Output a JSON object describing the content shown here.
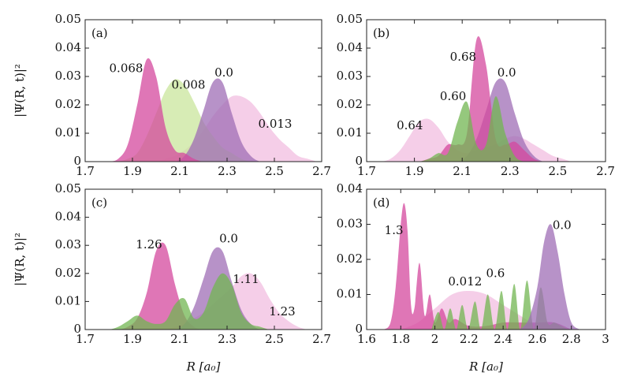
{
  "chart_data": [
    {
      "type": "area",
      "panel_label": "(a)",
      "ylabel": "|Ψ(R, t)|²",
      "xlim": [
        1.7,
        2.7
      ],
      "ylim": [
        0,
        0.05
      ],
      "xticks": [
        1.7,
        1.9,
        2.1,
        2.3,
        2.5,
        2.7
      ],
      "yticks": [
        0,
        0.01,
        0.02,
        0.03,
        0.04,
        0.05
      ],
      "x": [
        1.72,
        1.76,
        1.8,
        1.84,
        1.88,
        1.92,
        1.96,
        2,
        2.04,
        2.08,
        2.12,
        2.16,
        2.2,
        2.24,
        2.28,
        2.32,
        2.36,
        2.4,
        2.44,
        2.48,
        2.52,
        2.56,
        2.6,
        2.64,
        2.68
      ],
      "series": [
        {
          "name": "0.013",
          "color": "#f2bde0",
          "values": [
            0,
            0,
            0,
            0,
            0,
            0,
            0,
            0,
            0.001,
            0.002,
            0.004,
            0.007,
            0.011,
            0.016,
            0.02,
            0.023,
            0.023,
            0.021,
            0.017,
            0.012,
            0.008,
            0.005,
            0.002,
            0.001,
            0
          ]
        },
        {
          "name": "0.008",
          "color": "#c9e69c",
          "values": [
            0,
            0,
            0,
            0,
            0.001,
            0.003,
            0.009,
            0.017,
            0.025,
            0.029,
            0.027,
            0.021,
            0.014,
            0.009,
            0.005,
            0.003,
            0.001,
            0,
            0,
            0,
            0,
            0,
            0,
            0,
            0
          ]
        },
        {
          "name": "0.0",
          "color": "#9f6db5",
          "values": [
            0,
            0,
            0,
            0,
            0,
            0,
            0,
            0,
            0,
            0,
            0.002,
            0.008,
            0.018,
            0.028,
            0.028,
            0.017,
            0.007,
            0.002,
            0,
            0,
            0,
            0,
            0,
            0,
            0
          ]
        },
        {
          "name": "0.068",
          "color": "#d4489e",
          "values": [
            0,
            0,
            0,
            0.001,
            0.006,
            0.02,
            0.036,
            0.03,
            0.012,
            0.004,
            0.003,
            0.001,
            0,
            0,
            0,
            0,
            0,
            0,
            0,
            0,
            0,
            0,
            0,
            0,
            0
          ]
        }
      ]
    },
    {
      "type": "area",
      "panel_label": "(b)",
      "xlim": [
        1.7,
        2.7
      ],
      "ylim": [
        0,
        0.05
      ],
      "xticks": [
        1.7,
        1.9,
        2.1,
        2.3,
        2.5,
        2.7
      ],
      "yticks": [
        0,
        0.01,
        0.02,
        0.03,
        0.04,
        0.05
      ],
      "x": [
        1.72,
        1.76,
        1.8,
        1.84,
        1.88,
        1.92,
        1.96,
        2,
        2.04,
        2.08,
        2.12,
        2.16,
        2.2,
        2.24,
        2.28,
        2.32,
        2.36,
        2.4,
        2.44,
        2.48,
        2.52,
        2.56,
        2.6,
        2.64,
        2.68
      ],
      "series": [
        {
          "name": "0.64",
          "color": "#f2bde0",
          "values": [
            0,
            0,
            0.001,
            0.004,
            0.009,
            0.014,
            0.015,
            0.012,
            0.007,
            0.004,
            0.003,
            0.004,
            0.005,
            0.006,
            0.008,
            0.009,
            0.008,
            0.006,
            0.004,
            0.002,
            0.001,
            0,
            0,
            0,
            0
          ]
        },
        {
          "name": "0.0",
          "color": "#9f6db5",
          "values": [
            0,
            0,
            0,
            0,
            0,
            0,
            0,
            0,
            0,
            0,
            0.002,
            0.008,
            0.018,
            0.028,
            0.028,
            0.017,
            0.007,
            0.002,
            0,
            0,
            0,
            0,
            0,
            0,
            0
          ]
        },
        {
          "name": "0.68",
          "color": "#d4489e",
          "values": [
            0,
            0,
            0,
            0,
            0,
            0,
            0.001,
            0.002,
            0.006,
            0.006,
            0.01,
            0.043,
            0.034,
            0.008,
            0.006,
            0.007,
            0.004,
            0.001,
            0,
            0,
            0,
            0,
            0,
            0,
            0
          ]
        },
        {
          "name": "0.60",
          "color": "#72b552",
          "values": [
            0,
            0,
            0,
            0,
            0,
            0,
            0.001,
            0.003,
            0.003,
            0.014,
            0.021,
            0.006,
            0.006,
            0.023,
            0.01,
            0.002,
            0,
            0,
            0,
            0,
            0,
            0,
            0,
            0,
            0
          ]
        }
      ]
    },
    {
      "type": "area",
      "panel_label": "(c)",
      "ylabel": "|Ψ(R, t)|²",
      "xlabel": "R [a₀]",
      "xlim": [
        1.7,
        2.7
      ],
      "ylim": [
        0,
        0.05
      ],
      "xticks": [
        1.7,
        1.9,
        2.1,
        2.3,
        2.5,
        2.7
      ],
      "yticks": [
        0,
        0.01,
        0.02,
        0.03,
        0.04,
        0.05
      ],
      "x": [
        1.72,
        1.76,
        1.8,
        1.84,
        1.88,
        1.92,
        1.96,
        2,
        2.04,
        2.08,
        2.12,
        2.16,
        2.2,
        2.24,
        2.28,
        2.32,
        2.36,
        2.4,
        2.44,
        2.48,
        2.52,
        2.56,
        2.6,
        2.64,
        2.68
      ],
      "series": [
        {
          "name": "1.23",
          "color": "#f2bde0",
          "values": [
            0,
            0,
            0,
            0,
            0,
            0,
            0,
            0,
            0,
            0.001,
            0.002,
            0.004,
            0.006,
            0.009,
            0.012,
            0.015,
            0.019,
            0.02,
            0.017,
            0.011,
            0.006,
            0.003,
            0.001,
            0,
            0
          ]
        },
        {
          "name": "1.26",
          "color": "#d4489e",
          "values": [
            0,
            0,
            0,
            0,
            0.001,
            0.004,
            0.013,
            0.028,
            0.03,
            0.016,
            0.005,
            0.001,
            0,
            0,
            0,
            0,
            0,
            0,
            0,
            0,
            0,
            0,
            0,
            0,
            0
          ]
        },
        {
          "name": "0.0",
          "color": "#9f6db5",
          "values": [
            0,
            0,
            0,
            0,
            0,
            0,
            0,
            0,
            0,
            0,
            0.002,
            0.008,
            0.018,
            0.028,
            0.028,
            0.017,
            0.007,
            0.002,
            0,
            0,
            0,
            0,
            0,
            0,
            0
          ]
        },
        {
          "name": "1.11",
          "color": "#72b552",
          "values": [
            0,
            0,
            0,
            0.001,
            0.003,
            0.005,
            0.003,
            0.002,
            0.003,
            0.009,
            0.011,
            0.004,
            0.006,
            0.015,
            0.02,
            0.016,
            0.006,
            0.002,
            0.001,
            0,
            0,
            0,
            0,
            0,
            0
          ]
        }
      ]
    },
    {
      "type": "area",
      "panel_label": "(d)",
      "xlabel": "R [a₀]",
      "xlim": [
        1.6,
        3
      ],
      "ylim": [
        0,
        0.04
      ],
      "xticks": [
        1.6,
        1.8,
        2,
        2.2,
        2.4,
        2.6,
        2.8,
        3
      ],
      "yticks": [
        0,
        0.01,
        0.02,
        0.03,
        0.04
      ],
      "series": [
        {
          "name": "0.012",
          "color": "#f2bde0",
          "x": [
            1.8,
            1.9,
            2,
            2.1,
            2.2,
            2.3,
            2.4,
            2.5,
            2.6,
            2.7
          ],
          "values": [
            0,
            0.002,
            0.006,
            0.01,
            0.011,
            0.01,
            0.007,
            0.004,
            0.001,
            0
          ]
        },
        {
          "name": "1.3",
          "color": "#d4489e",
          "x": [
            1.7,
            1.74,
            1.77,
            1.8,
            1.82,
            1.84,
            1.86,
            1.88,
            1.91,
            1.94,
            1.97,
            2,
            2.04,
            2.08,
            2.12,
            2.2,
            2.3,
            2.4,
            2.5,
            2.6,
            2.7,
            2.8
          ],
          "values": [
            0,
            0.002,
            0.012,
            0.03,
            0.036,
            0.028,
            0.007,
            0.006,
            0.019,
            0.004,
            0.01,
            0.002,
            0.006,
            0.002,
            0.003,
            0.001,
            0.001,
            0.002,
            0.002,
            0.002,
            0.002,
            0
          ]
        },
        {
          "name": "0.6",
          "color": "#72b552",
          "x": [
            1.98,
            2.02,
            2.055,
            2.09,
            2.125,
            2.16,
            2.195,
            2.235,
            2.27,
            2.31,
            2.35,
            2.39,
            2.425,
            2.465,
            2.5,
            2.54,
            2.58,
            2.62,
            2.66,
            2.7,
            2.74,
            2.78
          ],
          "values": [
            0,
            0.005,
            0,
            0.006,
            0,
            0.007,
            0,
            0.008,
            0,
            0.01,
            0,
            0.011,
            0,
            0.013,
            0,
            0.014,
            0,
            0.012,
            0.002,
            0.002,
            0.001,
            0
          ]
        },
        {
          "name": "0.0",
          "color": "#9f6db5",
          "x": [
            2.5,
            2.55,
            2.6,
            2.64,
            2.68,
            2.72,
            2.76,
            2.8,
            2.85
          ],
          "values": [
            0,
            0.003,
            0.012,
            0.025,
            0.03,
            0.022,
            0.01,
            0.002,
            0
          ]
        }
      ]
    }
  ]
}
